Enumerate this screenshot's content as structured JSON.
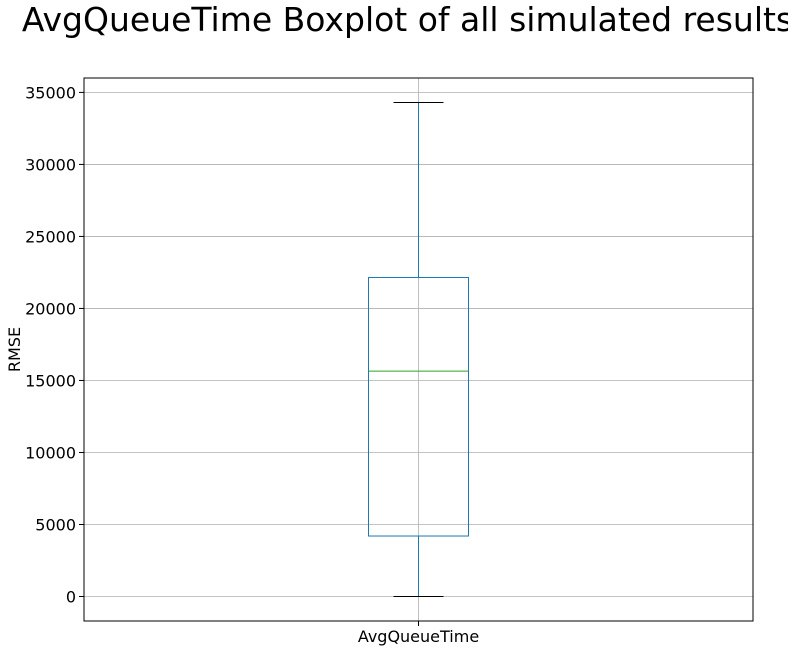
{
  "chart_data": {
    "type": "boxplot",
    "title": "AvgQueueTime Boxplot of all simulated results",
    "xlabel": "",
    "ylabel": "RMSE",
    "categories": [
      "AvgQueueTime"
    ],
    "boxes": [
      {
        "name": "AvgQueueTime",
        "whisker_low": 0,
        "q1": 4200,
        "median": 15650,
        "q3": 22150,
        "whisker_high": 34300
      }
    ],
    "ylim": [
      -1700,
      36000
    ],
    "yticks": [
      0,
      5000,
      10000,
      15000,
      20000,
      25000,
      30000,
      35000
    ],
    "grid": true,
    "colors": {
      "box": "#1f77b4",
      "median": "#2ca02c",
      "cap": "#000000",
      "grid": "#b0b0b0"
    }
  }
}
